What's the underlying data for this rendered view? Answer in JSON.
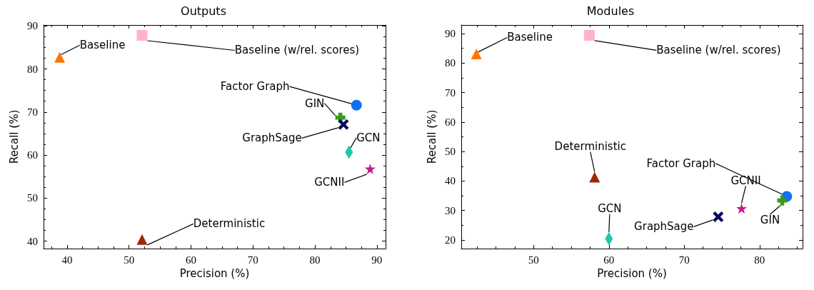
{
  "chart_data": [
    {
      "type": "scatter",
      "title": "Outputs",
      "xlabel": "Precision (%)",
      "ylabel": "Recall (%)",
      "xlim": [
        36.2,
        91.4
      ],
      "ylim": [
        38.3,
        90.2
      ],
      "xticks": [
        40,
        50,
        60,
        70,
        80,
        90
      ],
      "yticks": [
        40,
        50,
        60,
        70,
        80,
        90
      ],
      "series": [
        {
          "name": "Baseline",
          "color": "#ff7400",
          "marker": "triangle",
          "x": [
            38.8
          ],
          "values": [
            82.7
          ]
        },
        {
          "name": "Baseline (w/rel. scores)",
          "color": "#ffb3cb",
          "marker": "square",
          "x": [
            52.1
          ],
          "values": [
            87.8
          ]
        },
        {
          "name": "Deterministic",
          "color": "#a02800",
          "marker": "triangle",
          "x": [
            52.1
          ],
          "values": [
            40.4
          ]
        },
        {
          "name": "Factor Graph",
          "color": "#1170f0",
          "marker": "circle",
          "x": [
            86.7
          ],
          "values": [
            71.6
          ]
        },
        {
          "name": "GCN",
          "color": "#1fc8a8",
          "marker": "diamond",
          "x": [
            85.5
          ],
          "values": [
            60.7
          ]
        },
        {
          "name": "GCNII",
          "color": "#c8198c",
          "marker": "star",
          "x": [
            88.9
          ],
          "values": [
            56.8
          ]
        },
        {
          "name": "GIN",
          "color": "#3a9a1a",
          "marker": "cross",
          "x": [
            84.1
          ],
          "values": [
            68.7
          ]
        },
        {
          "name": "GraphSage",
          "color": "#06065e",
          "marker": "x",
          "x": [
            84.6
          ],
          "values": [
            67.1
          ]
        }
      ]
    },
    {
      "type": "scatter",
      "title": "Modules",
      "xlabel": "Precision (%)",
      "ylabel": "Recall (%)",
      "xlim": [
        40.4,
        85.7
      ],
      "ylim": [
        17.1,
        92.9
      ],
      "xticks": [
        50,
        60,
        70,
        80
      ],
      "yticks": [
        20,
        30,
        40,
        50,
        60,
        70,
        80,
        90
      ],
      "series": [
        {
          "name": "Baseline",
          "color": "#ff7400",
          "marker": "triangle",
          "x": [
            42.4
          ],
          "values": [
            83.1
          ]
        },
        {
          "name": "Baseline (w/rel. scores)",
          "color": "#ffb3cb",
          "marker": "square",
          "x": [
            57.4
          ],
          "values": [
            89.4
          ]
        },
        {
          "name": "Deterministic",
          "color": "#a02800",
          "marker": "triangle",
          "x": [
            58.1
          ],
          "values": [
            41.3
          ]
        },
        {
          "name": "Factor Graph",
          "color": "#1170f0",
          "marker": "circle",
          "x": [
            83.6
          ],
          "values": [
            34.8
          ]
        },
        {
          "name": "GCN",
          "color": "#1fc8a8",
          "marker": "diamond",
          "x": [
            60.0
          ],
          "values": [
            20.4
          ]
        },
        {
          "name": "GCNII",
          "color": "#c8198c",
          "marker": "star",
          "x": [
            77.6
          ],
          "values": [
            30.7
          ]
        },
        {
          "name": "GIN",
          "color": "#3a9a1a",
          "marker": "cross",
          "x": [
            83.0
          ],
          "values": [
            33.4
          ]
        },
        {
          "name": "GraphSage",
          "color": "#06065e",
          "marker": "x",
          "x": [
            74.5
          ],
          "values": [
            27.9
          ]
        }
      ]
    }
  ]
}
